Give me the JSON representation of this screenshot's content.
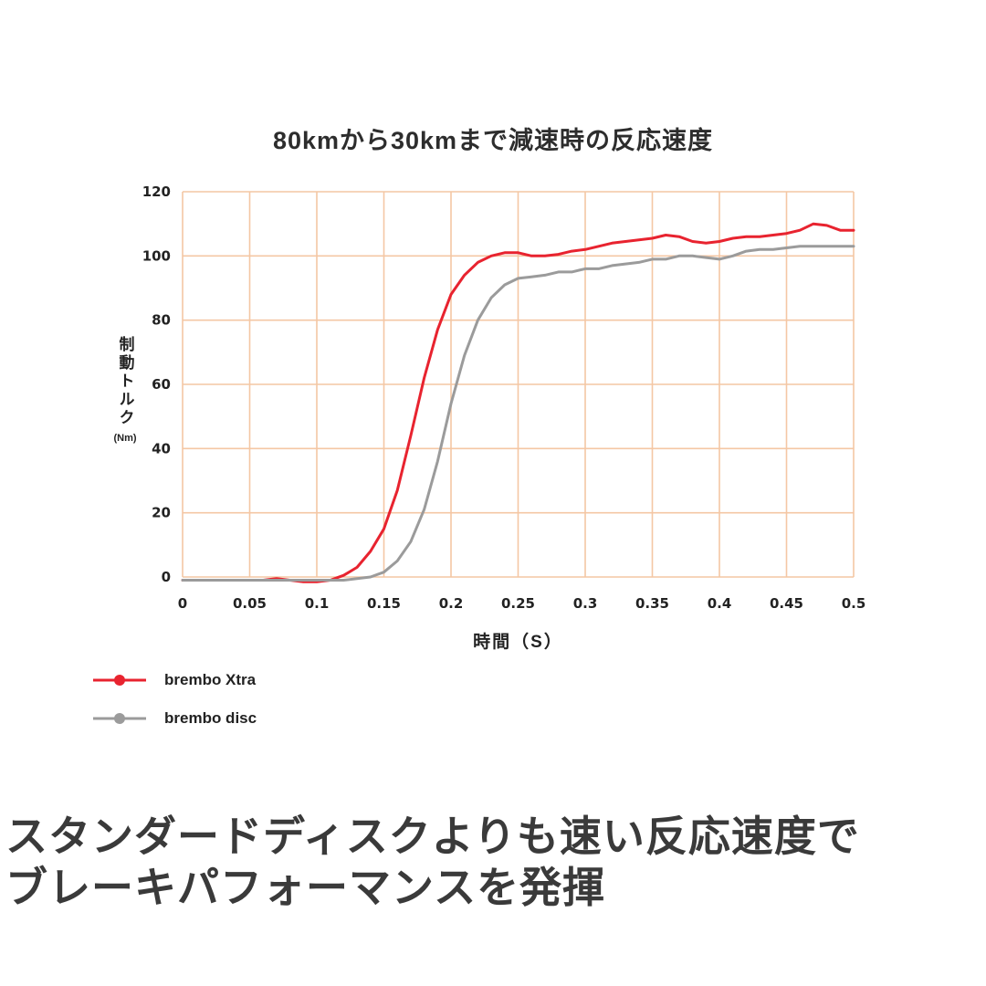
{
  "chart_data": {
    "type": "line",
    "title": "80kmから30kmまで減速時の反応速度",
    "xlabel": "時間（S）",
    "ylabel": "制動トルク",
    "ylabel_unit": "(Nm)",
    "xlim": [
      0,
      0.5
    ],
    "ylim": [
      0,
      120
    ],
    "grid": true,
    "grid_color": "#f4c7a4",
    "legend_position": "bottom-left",
    "xticks": [
      0,
      0.05,
      0.1,
      0.15,
      0.2,
      0.25,
      0.3,
      0.35,
      0.4,
      0.45,
      0.5
    ],
    "xtick_labels": [
      "0",
      "0.05",
      "0.1",
      "0.15",
      "0.2",
      "0.25",
      "0.3",
      "0.35",
      "0.4",
      "0.45",
      "0.5"
    ],
    "yticks": [
      0,
      20,
      40,
      60,
      80,
      100,
      120
    ],
    "x": [
      0,
      0.01,
      0.02,
      0.03,
      0.04,
      0.05,
      0.06,
      0.07,
      0.08,
      0.09,
      0.1,
      0.11,
      0.12,
      0.13,
      0.14,
      0.15,
      0.16,
      0.17,
      0.18,
      0.19,
      0.2,
      0.21,
      0.22,
      0.23,
      0.24,
      0.25,
      0.26,
      0.27,
      0.28,
      0.29,
      0.3,
      0.31,
      0.32,
      0.33,
      0.34,
      0.35,
      0.36,
      0.37,
      0.38,
      0.39,
      0.4,
      0.41,
      0.42,
      0.43,
      0.44,
      0.45,
      0.46,
      0.47,
      0.48,
      0.49,
      0.5
    ],
    "series": [
      {
        "name": "brembo Xtra",
        "color": "#e8232f",
        "values": [
          -1,
          -1,
          -1,
          -1,
          -1,
          -1,
          -1,
          -0.5,
          -1,
          -1.5,
          -1.5,
          -1,
          0.5,
          3,
          8,
          15,
          27,
          44,
          62,
          77,
          88,
          94,
          98,
          100,
          101,
          101,
          100,
          100,
          100.5,
          101.5,
          102,
          103,
          104,
          104.5,
          105,
          105.5,
          106.5,
          106,
          104.5,
          104,
          104.5,
          105.5,
          106,
          106,
          106.5,
          107,
          108,
          110,
          109.5,
          108,
          108
        ]
      },
      {
        "name": "brembo disc",
        "color": "#9b9b9b",
        "values": [
          -1,
          -1,
          -1,
          -1,
          -1,
          -1,
          -1,
          -1,
          -1,
          -1,
          -1,
          -1,
          -1,
          -0.5,
          0,
          1.5,
          5,
          11,
          21,
          36,
          54,
          69,
          80,
          87,
          91,
          93,
          93.5,
          94,
          95,
          95,
          96,
          96,
          97,
          97.5,
          98,
          99,
          99,
          100,
          100,
          99.5,
          99,
          100,
          101.5,
          102,
          102,
          102.5,
          103,
          103,
          103,
          103,
          103
        ]
      }
    ]
  },
  "caption": {
    "line1": "スタンダードディスクよりも速い反応速度で",
    "line2": "ブレーキパフォーマンスを発揮"
  }
}
